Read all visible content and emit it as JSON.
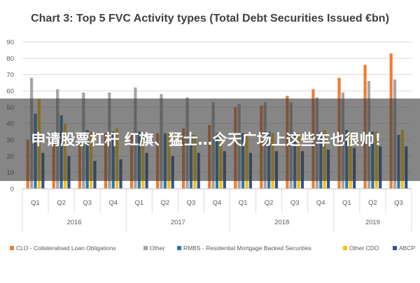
{
  "overlay_text": "申请股票杠杆 红旗、猛士…今天广场上这些车也很帅！",
  "chart_data": {
    "type": "bar",
    "title": "Chart 3: Top 5 FVC Activity types (Total Debt Securities Issued €bn)",
    "xlabel": "",
    "ylabel": "",
    "ylim": [
      0,
      90
    ],
    "yticks": [
      0,
      10,
      20,
      30,
      40,
      50,
      60,
      70,
      80,
      90
    ],
    "grid": true,
    "legend_position": "bottom",
    "categories": [
      "Q1",
      "Q2",
      "Q3",
      "Q4",
      "Q1",
      "Q2",
      "Q3",
      "Q4",
      "Q1",
      "Q2",
      "Q3",
      "Q4",
      "Q1",
      "Q2",
      "Q3"
    ],
    "year_groups": [
      {
        "label": "2016",
        "count": 4
      },
      {
        "label": "2017",
        "count": 4
      },
      {
        "label": "2018",
        "count": 4
      },
      {
        "label": "2019",
        "count": 3
      }
    ],
    "series": [
      {
        "name": "CLO - Collateralised Loan Obligations",
        "color": "#ed7d31",
        "values": [
          30,
          32,
          33,
          34,
          34,
          34,
          37,
          39,
          50,
          51,
          57,
          61,
          68,
          76,
          83
        ]
      },
      {
        "name": "Other",
        "color": "#a5a5a5",
        "values": [
          68,
          61,
          59,
          59,
          62,
          58,
          56,
          53,
          52,
          53,
          53,
          56,
          59,
          66,
          67
        ]
      },
      {
        "name": "RMBS - Residential Mortgage Backed Securities",
        "color": "#2e75b6",
        "values": [
          46,
          45,
          36,
          35,
          35,
          34,
          33,
          34,
          34,
          35,
          34,
          35,
          36,
          35,
          33
        ]
      },
      {
        "name": "Other CDO",
        "color": "#ffc000",
        "values": [
          55,
          40,
          35,
          37,
          34,
          34,
          33,
          33,
          33,
          34,
          34,
          36,
          35,
          35,
          36
        ]
      },
      {
        "name": "ABCP",
        "color": "#2f5597",
        "values": [
          22,
          20,
          17,
          18,
          22,
          20,
          22,
          23,
          22,
          23,
          23,
          24,
          25,
          26,
          26
        ]
      }
    ]
  }
}
